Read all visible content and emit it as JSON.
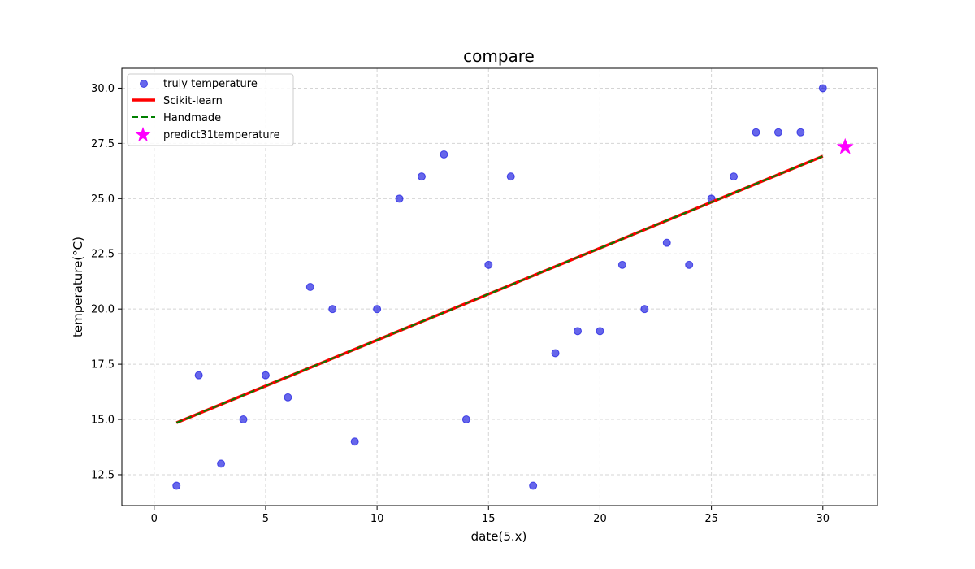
{
  "chart_data": {
    "type": "scatter",
    "title": "compare",
    "xlabel": "date(5.x)",
    "ylabel": "temperature(°C)",
    "xlim": [
      -1.45,
      32.45
    ],
    "ylim": [
      11.1,
      30.9
    ],
    "xticks": [
      0,
      5,
      10,
      15,
      20,
      25,
      30
    ],
    "xtick_labels": [
      "0",
      "5",
      "10",
      "15",
      "20",
      "25",
      "30"
    ],
    "yticks": [
      12.5,
      15.0,
      17.5,
      20.0,
      22.5,
      25.0,
      27.5,
      30.0
    ],
    "ytick_labels": [
      "12.5",
      "15.0",
      "17.5",
      "20.0",
      "22.5",
      "25.0",
      "27.5",
      "30.0"
    ],
    "grid": true,
    "legend_position": "top-left",
    "series": [
      {
        "name": "truly temperature",
        "kind": "scatter",
        "color": "#0000dd",
        "x": [
          1,
          2,
          3,
          4,
          5,
          6,
          7,
          8,
          9,
          10,
          11,
          12,
          13,
          14,
          15,
          16,
          17,
          18,
          19,
          20,
          21,
          22,
          23,
          24,
          25,
          26,
          27,
          28,
          29,
          30
        ],
        "y": [
          12,
          17,
          13,
          15,
          17,
          16,
          21,
          20,
          14,
          20,
          25,
          26,
          27,
          15,
          22,
          26,
          12,
          18,
          19,
          19,
          22,
          20,
          23,
          22,
          25,
          26,
          28,
          28,
          28,
          30
        ]
      },
      {
        "name": "Scikit-learn",
        "kind": "line",
        "color": "#ff0000",
        "x": [
          1,
          30
        ],
        "y": [
          14.85,
          26.92
        ]
      },
      {
        "name": "Handmade",
        "kind": "dashed-line",
        "color": "#008000",
        "x": [
          1,
          30
        ],
        "y": [
          14.85,
          26.92
        ]
      },
      {
        "name": "predict31temperature",
        "kind": "star",
        "color": "#ff00ff",
        "x": [
          31
        ],
        "y": [
          27.34
        ]
      }
    ]
  }
}
